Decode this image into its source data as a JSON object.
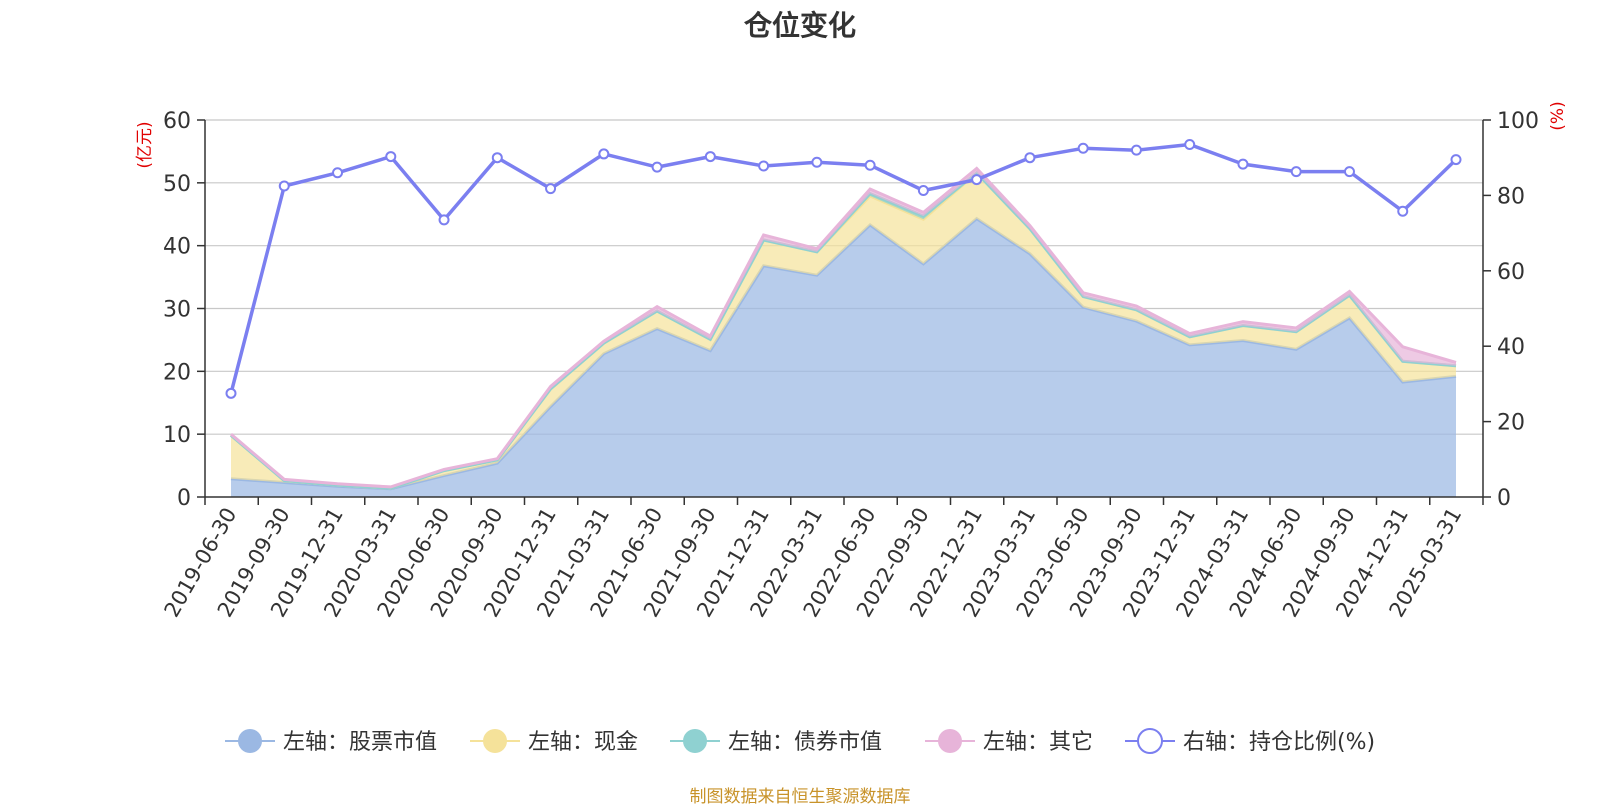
{
  "chart_data": {
    "title": "仓位变化",
    "type": "area",
    "left_axis_unit": "(亿元)",
    "right_axis_unit": "(%)",
    "ylim_left": [
      0,
      60
    ],
    "yticks_left": [
      0,
      10,
      20,
      30,
      40,
      50,
      60
    ],
    "ylim_right": [
      0,
      100
    ],
    "yticks_right": [
      0,
      20,
      40,
      60,
      80,
      100
    ],
    "grid": true,
    "legend_position": "bottom",
    "x": [
      "2019-06-30",
      "2019-09-30",
      "2019-12-31",
      "2020-03-31",
      "2020-06-30",
      "2020-09-30",
      "2020-12-31",
      "2021-03-31",
      "2021-06-30",
      "2021-09-30",
      "2021-12-31",
      "2022-03-31",
      "2022-06-30",
      "2022-09-30",
      "2022-12-31",
      "2023-03-31",
      "2023-06-30",
      "2023-09-30",
      "2023-12-31",
      "2024-03-31",
      "2024-06-30",
      "2024-09-30",
      "2024-12-31",
      "2025-03-31"
    ],
    "series": [
      {
        "name": "左轴：股票市值",
        "axis": "left",
        "kind": "stacked-area",
        "color": "#9bb8e3",
        "values": [
          2.9,
          2.3,
          1.7,
          1.3,
          3.4,
          5.4,
          14.4,
          22.8,
          26.8,
          23.3,
          36.8,
          35.3,
          43.3,
          37.1,
          44.3,
          38.7,
          30.2,
          28.0,
          24.2,
          24.9,
          23.5,
          28.5,
          18.3,
          19.2
        ]
      },
      {
        "name": "左轴：现金",
        "axis": "left",
        "kind": "stacked-area",
        "color": "#f5e29a",
        "values": [
          6.9,
          0.3,
          0.2,
          0.1,
          0.8,
          0.5,
          2.8,
          1.7,
          2.8,
          1.8,
          4.1,
          3.7,
          4.6,
          7.1,
          7.3,
          4.0,
          1.7,
          1.8,
          1.3,
          2.4,
          2.8,
          3.6,
          3.3,
          1.7
        ]
      },
      {
        "name": "左轴：债券市值",
        "axis": "left",
        "kind": "stacked-area",
        "color": "#8fd1d1",
        "values": [
          0,
          0,
          0,
          0,
          0,
          0,
          0,
          0,
          0,
          0,
          0,
          0,
          0.4,
          0.5,
          0,
          0,
          0,
          0,
          0,
          0,
          0,
          0,
          0,
          0
        ]
      },
      {
        "name": "左轴：其它",
        "axis": "left",
        "kind": "stacked-area",
        "color": "#e7b4d9",
        "values": [
          0.2,
          0.2,
          0.2,
          0.2,
          0.2,
          0.2,
          0.4,
          0.3,
          0.7,
          0.5,
          0.8,
          0.5,
          0.7,
          0.6,
          0.7,
          0.5,
          0.6,
          0.6,
          0.5,
          0.6,
          0.6,
          0.6,
          2.3,
          0.5
        ]
      },
      {
        "name": "右轴：持仓比例(%)",
        "axis": "right",
        "kind": "line",
        "color": "#7b7ff0",
        "values": [
          27.5,
          82.5,
          86.0,
          90.3,
          73.5,
          90.0,
          81.8,
          91.0,
          87.5,
          90.3,
          87.8,
          88.8,
          88.0,
          81.3,
          84.2,
          90.0,
          92.5,
          92.0,
          93.5,
          88.3,
          86.3,
          86.3,
          75.8,
          89.5
        ]
      }
    ]
  },
  "source_note": "制图数据来自恒生聚源数据库"
}
